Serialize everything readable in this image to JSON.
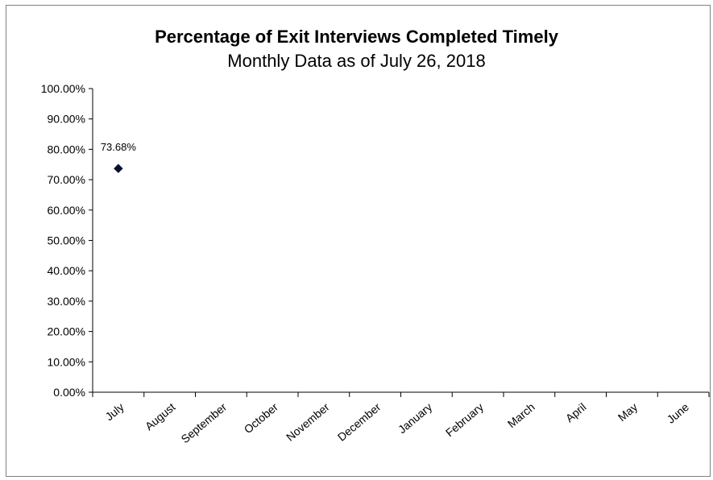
{
  "chart_data": {
    "type": "scatter",
    "title": "Percentage of Exit Interviews Completed Timely",
    "subtitle": "Monthly Data as of July 26, 2018",
    "xlabel": "",
    "ylabel": "",
    "categories": [
      "July",
      "August",
      "September",
      "October",
      "November",
      "December",
      "January",
      "February",
      "March",
      "April",
      "May",
      "June"
    ],
    "series": [
      {
        "values": [
          73.68,
          null,
          null,
          null,
          null,
          null,
          null,
          null,
          null,
          null,
          null,
          null
        ],
        "data_labels": [
          "73.68%",
          null,
          null,
          null,
          null,
          null,
          null,
          null,
          null,
          null,
          null,
          null
        ],
        "marker": "diamond",
        "color": "#0a0f2a"
      }
    ],
    "ylim": [
      0,
      100
    ],
    "ytick_step": 10,
    "ytick_labels": [
      "0.00%",
      "10.00%",
      "20.00%",
      "30.00%",
      "40.00%",
      "50.00%",
      "60.00%",
      "70.00%",
      "80.00%",
      "90.00%",
      "100.00%"
    ],
    "grid": false,
    "legend": "none"
  },
  "colors": {
    "axis": "#000000",
    "frame": "#808080",
    "marker": "#0a0f2a"
  }
}
